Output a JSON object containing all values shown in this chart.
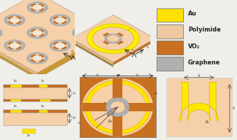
{
  "colors": {
    "au": "#FFE000",
    "au_ring": "#F5D800",
    "polyimide": "#F0C8A0",
    "vo2": "#C87020",
    "vo2_dark": "#A85010",
    "graphene": "#B0B0B0",
    "background": "#F0EEE8",
    "skin_light": "#F5D0A8",
    "skin_side": "#E0B878",
    "au_side": "#D4A020",
    "white": "#FFFFFF",
    "black": "#222222",
    "gray_line": "#888888"
  },
  "legend": {
    "items": [
      "Au",
      "Polyimide",
      "VO₂",
      "Graphene"
    ],
    "colors": [
      "#FFE000",
      "#F0C8A0",
      "#C87020",
      "#B0B0B0"
    ]
  }
}
